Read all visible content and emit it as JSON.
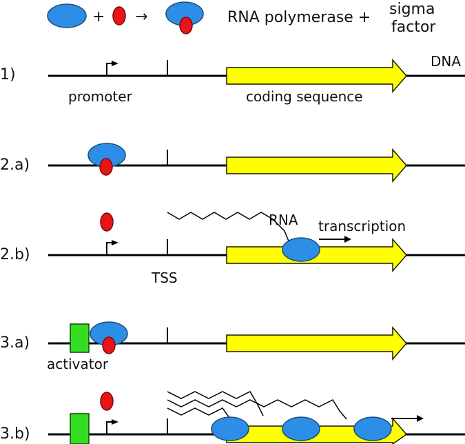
{
  "legend": {
    "plus": "+",
    "arrow": "→",
    "text_main": "RNA polymerase +",
    "text_sigma_line1": "sigma",
    "text_sigma_line2": "factor"
  },
  "rows": [
    {
      "label": "1)"
    },
    {
      "label": "2.a)"
    },
    {
      "label": "2.b)"
    },
    {
      "label": "3.a)"
    },
    {
      "label": "3.b)"
    }
  ],
  "annotations": {
    "dna": "DNA",
    "promoter": "promoter",
    "coding_sequence": "coding sequence",
    "rna": "RNA",
    "transcription": "transcription",
    "tss": "TSS",
    "activator": "activator"
  },
  "colors": {
    "polymerase": "#2d8ee8",
    "sigma": "#e8141a",
    "gene": "#ffff00",
    "activator": "#33dd22",
    "dna": "#000000"
  }
}
